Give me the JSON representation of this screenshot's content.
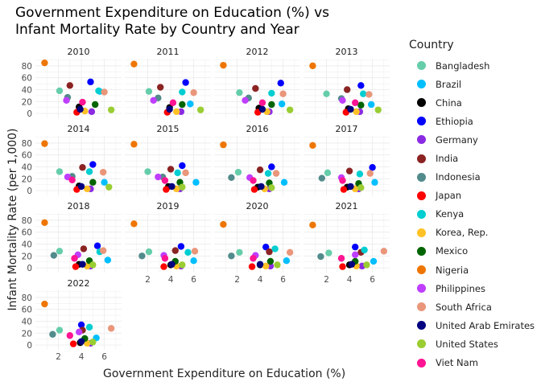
{
  "chart_data": {
    "type": "scatter",
    "title": "Government Expenditure on Education (%) vs\nInfant Mortality Rate by Country and Year",
    "xlabel": "Government Expenditure on Education (%)",
    "ylabel": "Infant Mortality Rate (per 1,000)",
    "xlim": [
      0,
      7.5
    ],
    "ylim": [
      -8,
      92
    ],
    "x_ticks": [
      2,
      4,
      6
    ],
    "y_ticks": [
      0,
      20,
      40,
      60,
      80
    ],
    "grid": true,
    "legend_title": "Country",
    "legend_position": "right",
    "countries": [
      {
        "name": "Bangladesh",
        "color": "#66CDAA"
      },
      {
        "name": "Brazil",
        "color": "#00BFFF"
      },
      {
        "name": "China",
        "color": "#000000"
      },
      {
        "name": "Ethiopia",
        "color": "#0000FF"
      },
      {
        "name": "Germany",
        "color": "#8A2BE2"
      },
      {
        "name": "India",
        "color": "#8B2323"
      },
      {
        "name": "Indonesia",
        "color": "#528B8B"
      },
      {
        "name": "Japan",
        "color": "#FF0000"
      },
      {
        "name": "Kenya",
        "color": "#00CED1"
      },
      {
        "name": "Korea, Rep.",
        "color": "#FFC125"
      },
      {
        "name": "Mexico",
        "color": "#006400"
      },
      {
        "name": "Nigeria",
        "color": "#EE7600"
      },
      {
        "name": "Philippines",
        "color": "#BF3EFF"
      },
      {
        "name": "South Africa",
        "color": "#E9967A"
      },
      {
        "name": "United Arab Emirates",
        "color": "#000080"
      },
      {
        "name": "United States",
        "color": "#9ACD32"
      },
      {
        "name": "Viet Nam",
        "color": "#FF1493"
      }
    ],
    "panels": [
      {
        "year": "2010",
        "points": [
          [
            2.1,
            38
          ],
          [
            5.6,
            37
          ],
          [
            3.8,
            11
          ],
          [
            4.8,
            53
          ],
          [
            4.9,
            3
          ],
          [
            3.0,
            47
          ],
          [
            2.8,
            27
          ],
          [
            3.6,
            2
          ],
          [
            5.5,
            38
          ],
          [
            4.3,
            4
          ],
          [
            5.2,
            15
          ],
          [
            0.8,
            85
          ],
          [
            2.7,
            22
          ],
          [
            6.0,
            36
          ],
          [
            3.9,
            7
          ],
          [
            6.6,
            6
          ],
          [
            4.1,
            19
          ]
        ]
      },
      {
        "year": "2011",
        "points": [
          [
            2.1,
            37
          ],
          [
            5.7,
            16
          ],
          [
            3.9,
            10
          ],
          [
            5.3,
            52
          ],
          [
            4.9,
            3
          ],
          [
            3.1,
            44
          ],
          [
            2.9,
            26
          ],
          [
            3.7,
            2
          ],
          [
            5.0,
            36
          ],
          [
            4.5,
            3
          ],
          [
            5.0,
            15
          ],
          [
            0.8,
            83
          ],
          [
            2.5,
            22
          ],
          [
            6.0,
            35
          ],
          [
            3.9,
            7
          ],
          [
            6.6,
            6
          ],
          [
            4.2,
            18
          ]
        ]
      },
      {
        "year": "2012",
        "points": [
          [
            2.2,
            35
          ],
          [
            5.9,
            16
          ],
          [
            3.9,
            9
          ],
          [
            5.8,
            51
          ],
          [
            4.8,
            3
          ],
          [
            3.6,
            42
          ],
          [
            3.0,
            26
          ],
          [
            3.8,
            2
          ],
          [
            5.0,
            34
          ],
          [
            4.6,
            3
          ],
          [
            5.0,
            15
          ],
          [
            0.8,
            81
          ],
          [
            2.7,
            22
          ],
          [
            6.0,
            33
          ],
          [
            4.2,
            7
          ],
          [
            6.6,
            6
          ],
          [
            4.2,
            18
          ]
        ]
      },
      {
        "year": "2013",
        "points": [
          [
            2.0,
            33
          ],
          [
            5.9,
            15
          ],
          [
            3.9,
            8
          ],
          [
            5.0,
            47
          ],
          [
            4.9,
            3
          ],
          [
            3.8,
            40
          ],
          [
            3.3,
            25
          ],
          [
            3.7,
            2
          ],
          [
            5.2,
            33
          ],
          [
            4.6,
            3
          ],
          [
            5.0,
            14
          ],
          [
            0.8,
            80
          ],
          [
            3.4,
            22
          ],
          [
            5.7,
            32
          ],
          [
            4.1,
            7
          ],
          [
            6.5,
            6
          ],
          [
            4.5,
            18
          ]
        ]
      },
      {
        "year": "2014",
        "points": [
          [
            2.1,
            32
          ],
          [
            6.0,
            14
          ],
          [
            3.8,
            8
          ],
          [
            5.0,
            44
          ],
          [
            4.8,
            3
          ],
          [
            4.1,
            39
          ],
          [
            3.2,
            24
          ],
          [
            3.6,
            2
          ],
          [
            4.7,
            32
          ],
          [
            4.5,
            3
          ],
          [
            5.0,
            14
          ],
          [
            0.8,
            79
          ],
          [
            2.8,
            23
          ],
          [
            5.9,
            31
          ],
          [
            4.0,
            7
          ],
          [
            6.4,
            6
          ],
          [
            3.2,
            18
          ]
        ]
      },
      {
        "year": "2015",
        "points": [
          [
            2.0,
            32
          ],
          [
            6.2,
            14
          ],
          [
            3.8,
            7
          ],
          [
            5.0,
            42
          ],
          [
            4.8,
            3
          ],
          [
            4.0,
            36
          ],
          [
            3.3,
            23
          ],
          [
            3.6,
            2
          ],
          [
            4.6,
            30
          ],
          [
            4.5,
            3
          ],
          [
            4.8,
            14
          ],
          [
            0.8,
            78
          ],
          [
            2.9,
            23
          ],
          [
            5.3,
            30
          ],
          [
            4.1,
            7
          ],
          [
            5.0,
            6
          ],
          [
            3.5,
            17
          ]
        ]
      },
      {
        "year": "2016",
        "points": [
          [
            2.1,
            31
          ],
          [
            6.1,
            14
          ],
          [
            3.8,
            6
          ],
          [
            5.0,
            40
          ],
          [
            4.8,
            3
          ],
          [
            4.0,
            35
          ],
          [
            1.5,
            22
          ],
          [
            3.5,
            2
          ],
          [
            4.7,
            29
          ],
          [
            4.4,
            3
          ],
          [
            4.8,
            13
          ],
          [
            0.8,
            77
          ],
          [
            3.1,
            22
          ],
          [
            5.4,
            29
          ],
          [
            4.1,
            7
          ],
          [
            5.0,
            5
          ],
          [
            3.4,
            17
          ]
        ]
      },
      {
        "year": "2017",
        "points": [
          [
            2.1,
            30
          ],
          [
            6.2,
            14
          ],
          [
            3.8,
            6
          ],
          [
            6.0,
            39
          ],
          [
            4.8,
            3
          ],
          [
            4.0,
            33
          ],
          [
            1.6,
            21
          ],
          [
            3.5,
            2
          ],
          [
            4.9,
            28
          ],
          [
            4.5,
            3
          ],
          [
            4.8,
            12
          ],
          [
            0.8,
            76
          ],
          [
            3.3,
            22
          ],
          [
            5.8,
            29
          ],
          [
            4.1,
            7
          ],
          [
            5.0,
            5
          ],
          [
            3.4,
            17
          ]
        ]
      },
      {
        "year": "2018",
        "points": [
          [
            2.1,
            28
          ],
          [
            6.3,
            13
          ],
          [
            3.8,
            6
          ],
          [
            5.4,
            37
          ],
          [
            4.8,
            3
          ],
          [
            4.2,
            32
          ],
          [
            1.6,
            21
          ],
          [
            3.5,
            2
          ],
          [
            5.6,
            27
          ],
          [
            4.5,
            3
          ],
          [
            4.7,
            12
          ],
          [
            0.8,
            76
          ],
          [
            3.7,
            22
          ],
          [
            5.9,
            29
          ],
          [
            4.1,
            6
          ],
          [
            5.0,
            5
          ],
          [
            3.4,
            16
          ]
        ]
      },
      {
        "year": "2019",
        "points": [
          [
            2.1,
            27
          ],
          [
            6.0,
            12
          ],
          [
            4.0,
            5
          ],
          [
            4.9,
            36
          ],
          [
            4.9,
            3
          ],
          [
            4.4,
            29
          ],
          [
            1.5,
            20
          ],
          [
            3.4,
            2
          ],
          [
            5.5,
            26
          ],
          [
            4.5,
            3
          ],
          [
            4.4,
            11
          ],
          [
            0.8,
            74
          ],
          [
            3.4,
            21
          ],
          [
            6.1,
            28
          ],
          [
            4.1,
            6
          ],
          [
            5.0,
            5
          ],
          [
            3.5,
            16
          ]
        ]
      },
      {
        "year": "2020",
        "points": [
          [
            2.2,
            26
          ],
          [
            6.3,
            12
          ],
          [
            4.0,
            5
          ],
          [
            4.5,
            35
          ],
          [
            4.9,
            3
          ],
          [
            4.8,
            27
          ],
          [
            1.5,
            20
          ],
          [
            3.3,
            2
          ],
          [
            5.3,
            32
          ],
          [
            4.5,
            3
          ],
          [
            4.9,
            11
          ],
          [
            0.8,
            73
          ],
          [
            3.6,
            21
          ],
          [
            6.6,
            26
          ],
          [
            4.0,
            6
          ],
          [
            5.5,
            5
          ],
          [
            3.4,
            16
          ]
        ]
      },
      {
        "year": "2021",
        "points": [
          [
            2.2,
            25
          ],
          [
            6.1,
            11
          ],
          [
            4.0,
            5
          ],
          [
            4.5,
            35
          ],
          [
            5.1,
            3
          ],
          [
            5.0,
            26
          ],
          [
            1.5,
            19
          ],
          [
            3.4,
            2
          ],
          [
            5.3,
            30
          ],
          [
            4.6,
            3
          ],
          [
            4.5,
            11
          ],
          [
            0.8,
            72
          ],
          [
            4.5,
            22
          ],
          [
            7.0,
            28
          ],
          [
            4.2,
            6
          ],
          [
            5.5,
            5
          ],
          [
            3.3,
            16
          ]
        ]
      },
      {
        "year": "2022",
        "points": [
          [
            2.1,
            25
          ],
          [
            5.3,
            12
          ],
          [
            3.9,
            4
          ],
          [
            4.0,
            34
          ],
          [
            4.8,
            3
          ],
          [
            4.1,
            25
          ],
          [
            1.5,
            18
          ],
          [
            3.3,
            2
          ],
          [
            4.7,
            30
          ],
          [
            4.5,
            3
          ],
          [
            4.3,
            11
          ],
          [
            0.8,
            69
          ],
          [
            3.8,
            22
          ],
          [
            6.6,
            28
          ],
          [
            4.0,
            6
          ],
          [
            5.0,
            5
          ],
          [
            3.0,
            16
          ]
        ]
      }
    ]
  }
}
